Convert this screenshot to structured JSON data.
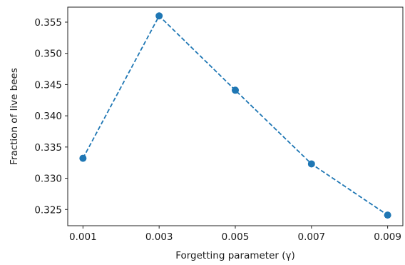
{
  "chart_data": {
    "type": "line",
    "title": "",
    "xlabel": "Forgetting parameter (γ)",
    "ylabel": "Fraction of live bees",
    "x": [
      0.001,
      0.003,
      0.005,
      0.007,
      0.009
    ],
    "x_tick_labels": [
      "0.001",
      "0.003",
      "0.005",
      "0.007",
      "0.009"
    ],
    "y_ticks": [
      0.325,
      0.33,
      0.335,
      0.34,
      0.345,
      0.35,
      0.355
    ],
    "y_tick_labels": [
      "0.325",
      "0.330",
      "0.335",
      "0.340",
      "0.345",
      "0.350",
      "0.355"
    ],
    "xlim": [
      0.0006,
      0.0094
    ],
    "ylim": [
      0.3224,
      0.3574
    ],
    "grid": false,
    "series": [
      {
        "values": [
          0.3332,
          0.356,
          0.3441,
          0.3323,
          0.3241
        ],
        "color": "#1f77b4",
        "line_style": "dashed",
        "marker": "circle"
      }
    ]
  }
}
